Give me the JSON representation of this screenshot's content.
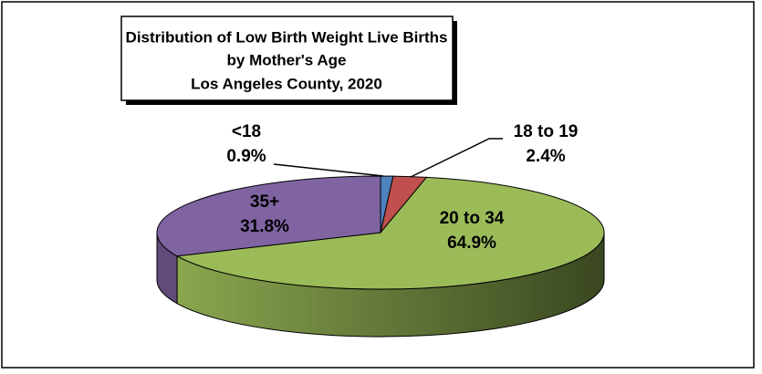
{
  "chart_data": {
    "type": "pie3d",
    "title": [
      "Distribution of Low Birth Weight Live Births",
      "by Mother's Age",
      "Los Angeles County, 2020"
    ],
    "categories": [
      "<18",
      "18 to 19",
      "20 to 34",
      "35+"
    ],
    "values": [
      0.9,
      2.4,
      64.9,
      31.8
    ],
    "value_labels": [
      "0.9%",
      "2.4%",
      "64.9%",
      "31.8%"
    ],
    "colors": [
      "#4f81bd",
      "#c0504d",
      "#9bbb59",
      "#8064a2"
    ]
  }
}
